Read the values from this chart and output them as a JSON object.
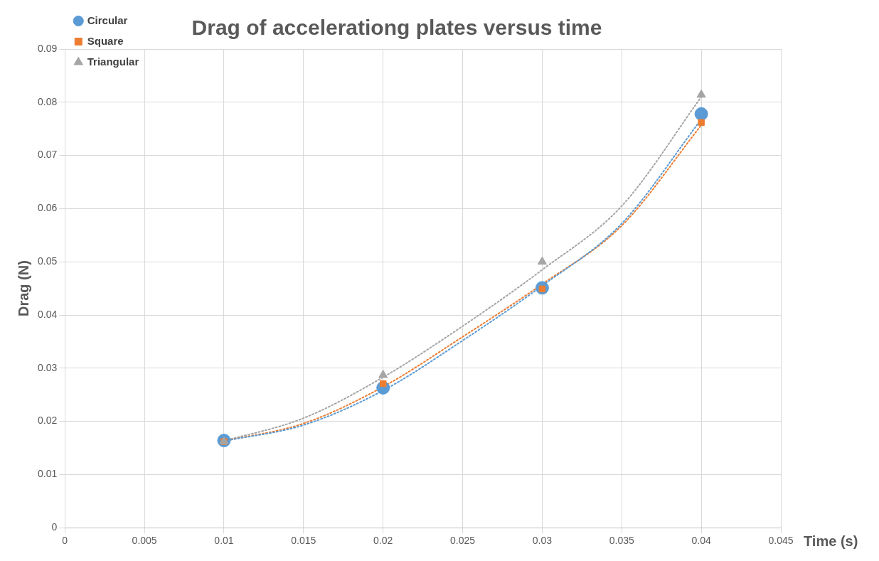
{
  "chart_data": {
    "type": "scatter",
    "title": "Drag of accelerationg plates versus time",
    "xlabel": "Time (s)",
    "ylabel": "Drag (N)",
    "x": [
      0.01,
      0.02,
      0.03,
      0.04
    ],
    "series": [
      {
        "name": "Circular",
        "color": "#5b9bd5",
        "marker": "circle",
        "values": [
          0.0164,
          0.0263,
          0.0451,
          0.0778
        ]
      },
      {
        "name": "Square",
        "color": "#ed7d31",
        "marker": "square",
        "values": [
          0.0162,
          0.0271,
          0.0449,
          0.0762
        ]
      },
      {
        "name": "Triangular",
        "color": "#a5a5a5",
        "marker": "triangle",
        "values": [
          0.0162,
          0.0287,
          0.05,
          0.0814
        ]
      },
      {
        "type": "line",
        "color": "#5b9bd5",
        "marker": "none",
        "line_style": "dotted",
        "x": [
          0.01,
          0.015,
          0.02,
          0.025,
          0.03,
          0.035,
          0.04
        ],
        "values": [
          0.0163,
          0.0193,
          0.0258,
          0.0352,
          0.0455,
          0.0572,
          0.0768
        ]
      },
      {
        "type": "line",
        "color": "#ed7d31",
        "marker": "none",
        "line_style": "dotted",
        "x": [
          0.01,
          0.015,
          0.02,
          0.025,
          0.03,
          0.035,
          0.04
        ],
        "values": [
          0.0163,
          0.0196,
          0.0265,
          0.0359,
          0.0458,
          0.0568,
          0.0757
        ]
      },
      {
        "type": "line",
        "color": "#a5a5a5",
        "marker": "none",
        "line_style": "dotted",
        "x": [
          0.01,
          0.015,
          0.02,
          0.025,
          0.03,
          0.035,
          0.04
        ],
        "values": [
          0.0163,
          0.0206,
          0.0283,
          0.0379,
          0.0485,
          0.0605,
          0.081
        ]
      }
    ],
    "xlim": [
      0,
      0.045
    ],
    "xticks": [
      0,
      0.005,
      0.01,
      0.015,
      0.02,
      0.025,
      0.03,
      0.035,
      0.04,
      0.045
    ],
    "ylim": [
      0,
      0.09
    ],
    "yticks": [
      0,
      0.01,
      0.02,
      0.03,
      0.04,
      0.05,
      0.06,
      0.07,
      0.08,
      0.09
    ],
    "grid": true,
    "legend": "top left"
  }
}
